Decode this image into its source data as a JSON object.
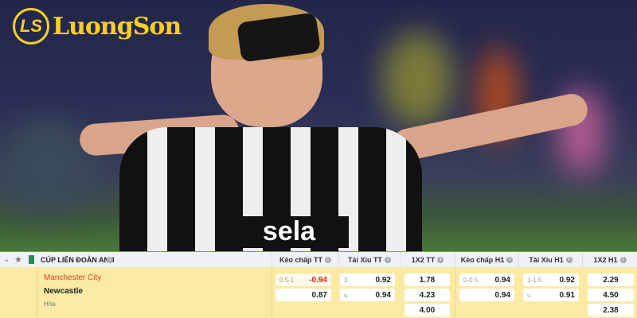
{
  "logo": {
    "text": "LuongSon",
    "badge": "LS TV"
  },
  "league": {
    "name": "CÚP LIÊN ĐOÀN ANH"
  },
  "columns": [
    "Kèo chấp TT",
    "Tài Xỉu TT",
    "1X2 TT",
    "Kèo chấp H1",
    "Tài Xỉu H1",
    "1X2 H1"
  ],
  "match": {
    "home": "Manchester City",
    "away": "Newcastle",
    "draw": "Hòa"
  },
  "odds": {
    "handicap_ft": [
      {
        "line": "0.5-1",
        "value": "-0.94"
      },
      {
        "line": "",
        "value": "0.87"
      }
    ],
    "overunder_ft": [
      {
        "line": "3",
        "value": "0.92"
      },
      {
        "line": "u",
        "value": "0.94"
      }
    ],
    "x12_ft": [
      "1.78",
      "4.23",
      "4.00"
    ],
    "handicap_h1": [
      {
        "line": "0-0.5",
        "value": "0.94"
      },
      {
        "line": "",
        "value": "0.94"
      }
    ],
    "overunder_h1": [
      {
        "line": "1-1.5",
        "value": "0.92"
      },
      {
        "line": "u",
        "value": "0.91"
      }
    ],
    "x12_h1": [
      "2.29",
      "4.50",
      "2.38"
    ]
  },
  "colors": {
    "home": "#e0412f",
    "negative": "#e0202a",
    "logo": "#f5d020",
    "row_bg": "#fbeaa4"
  }
}
